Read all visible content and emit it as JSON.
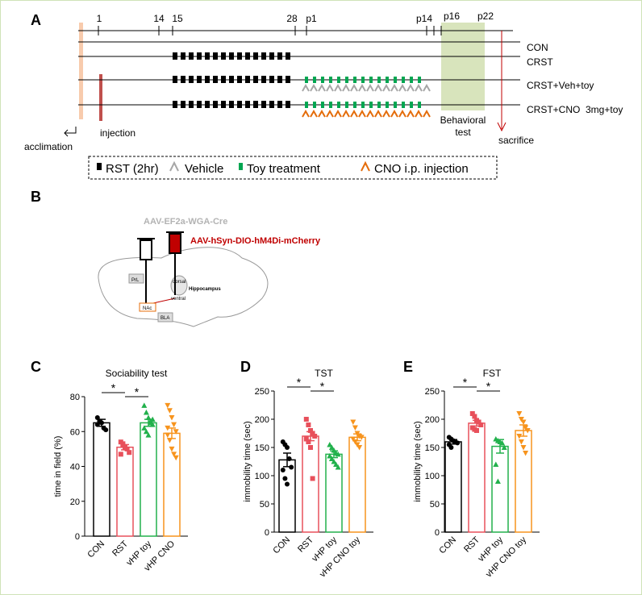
{
  "panels": [
    "A",
    "B",
    "C",
    "D",
    "E"
  ],
  "timeline": {
    "days": [
      "1",
      "14",
      "15",
      "28",
      "p1",
      "p14",
      "p16",
      "p22"
    ],
    "groups": [
      "CON",
      "CRST",
      "CRST+Veh+toy",
      "CRST+CNO  3mg+toy"
    ],
    "acclimation": "acclimation",
    "injection": "injection",
    "behavioral_test": [
      "Behavioral",
      "test"
    ],
    "sacrifice": "sacrifice",
    "legend": [
      "RST (2hr)",
      "Vehicle",
      "Toy treatment",
      "CNO i.p. injection"
    ]
  },
  "injection_diagram": {
    "virus_1": "AAV-EF2a-WGA-Cre",
    "virus_2": "AAV-hSyn-DIO-hM4Di-mCherry",
    "regions": [
      "PrL",
      "dorsal",
      "Hippocampus",
      "ventral",
      "NAc",
      "BLA"
    ]
  },
  "chart_data": [
    {
      "type": "bar",
      "title": "Sociability test",
      "ylabel": "time in field (%)",
      "categories": [
        "CON",
        "RST",
        "vHP toy",
        "vHP CNO"
      ],
      "colors": [
        "#000000",
        "#e8505b",
        "#22b14c",
        "#f7941d"
      ],
      "values": [
        65,
        51,
        65,
        59
      ],
      "errors": [
        2,
        1.5,
        2,
        3
      ],
      "points": [
        [
          68,
          66,
          65,
          62,
          61,
          64
        ],
        [
          54,
          52,
          51,
          50,
          48,
          47,
          53
        ],
        [
          75,
          71,
          68,
          66,
          64,
          62,
          60,
          58,
          65,
          67
        ],
        [
          75,
          72,
          68,
          64,
          60,
          58,
          55,
          50,
          47,
          45,
          62
        ]
      ],
      "significance": [
        "*",
        "*"
      ],
      "ylim": [
        0,
        80
      ],
      "yticks": [
        0,
        20,
        40,
        60,
        80
      ]
    },
    {
      "type": "bar",
      "title": "TST",
      "ylabel": "immobility time (sec)",
      "categories": [
        "CON",
        "RST",
        "vHP toy",
        "vHP CNO toy"
      ],
      "colors": [
        "#000000",
        "#e8505b",
        "#22b14c",
        "#f7941d"
      ],
      "values": [
        128,
        170,
        138,
        168
      ],
      "errors": [
        12,
        8,
        6,
        6
      ],
      "points": [
        [
          160,
          155,
          150,
          130,
          115,
          110,
          95,
          85
        ],
        [
          200,
          190,
          180,
          175,
          170,
          165,
          160,
          150,
          95
        ],
        [
          155,
          150,
          145,
          140,
          138,
          135,
          130,
          125,
          120,
          115
        ],
        [
          195,
          185,
          175,
          170,
          168,
          165,
          160,
          155,
          150
        ]
      ],
      "significance": [
        "*",
        "*"
      ],
      "ylim": [
        0,
        250
      ],
      "yticks": [
        0,
        50,
        100,
        150,
        200,
        250
      ]
    },
    {
      "type": "bar",
      "title": "FST",
      "ylabel": "immobility time (sec)",
      "categories": [
        "CON",
        "RST",
        "vHP toy",
        "vHP CNO toy"
      ],
      "colors": [
        "#000000",
        "#e8505b",
        "#22b14c",
        "#f7941d"
      ],
      "values": [
        160,
        193,
        152,
        180
      ],
      "errors": [
        4,
        5,
        12,
        10
      ],
      "points": [
        [
          168,
          165,
          162,
          160,
          158,
          155,
          150
        ],
        [
          210,
          205,
          198,
          195,
          190,
          185,
          182,
          180
        ],
        [
          165,
          162,
          160,
          158,
          150,
          120,
          90
        ],
        [
          210,
          200,
          195,
          185,
          180,
          170,
          160,
          150,
          140
        ]
      ],
      "significance": [
        "*",
        "*"
      ],
      "ylim": [
        0,
        250
      ],
      "yticks": [
        0,
        50,
        100,
        150,
        200,
        250
      ]
    }
  ]
}
